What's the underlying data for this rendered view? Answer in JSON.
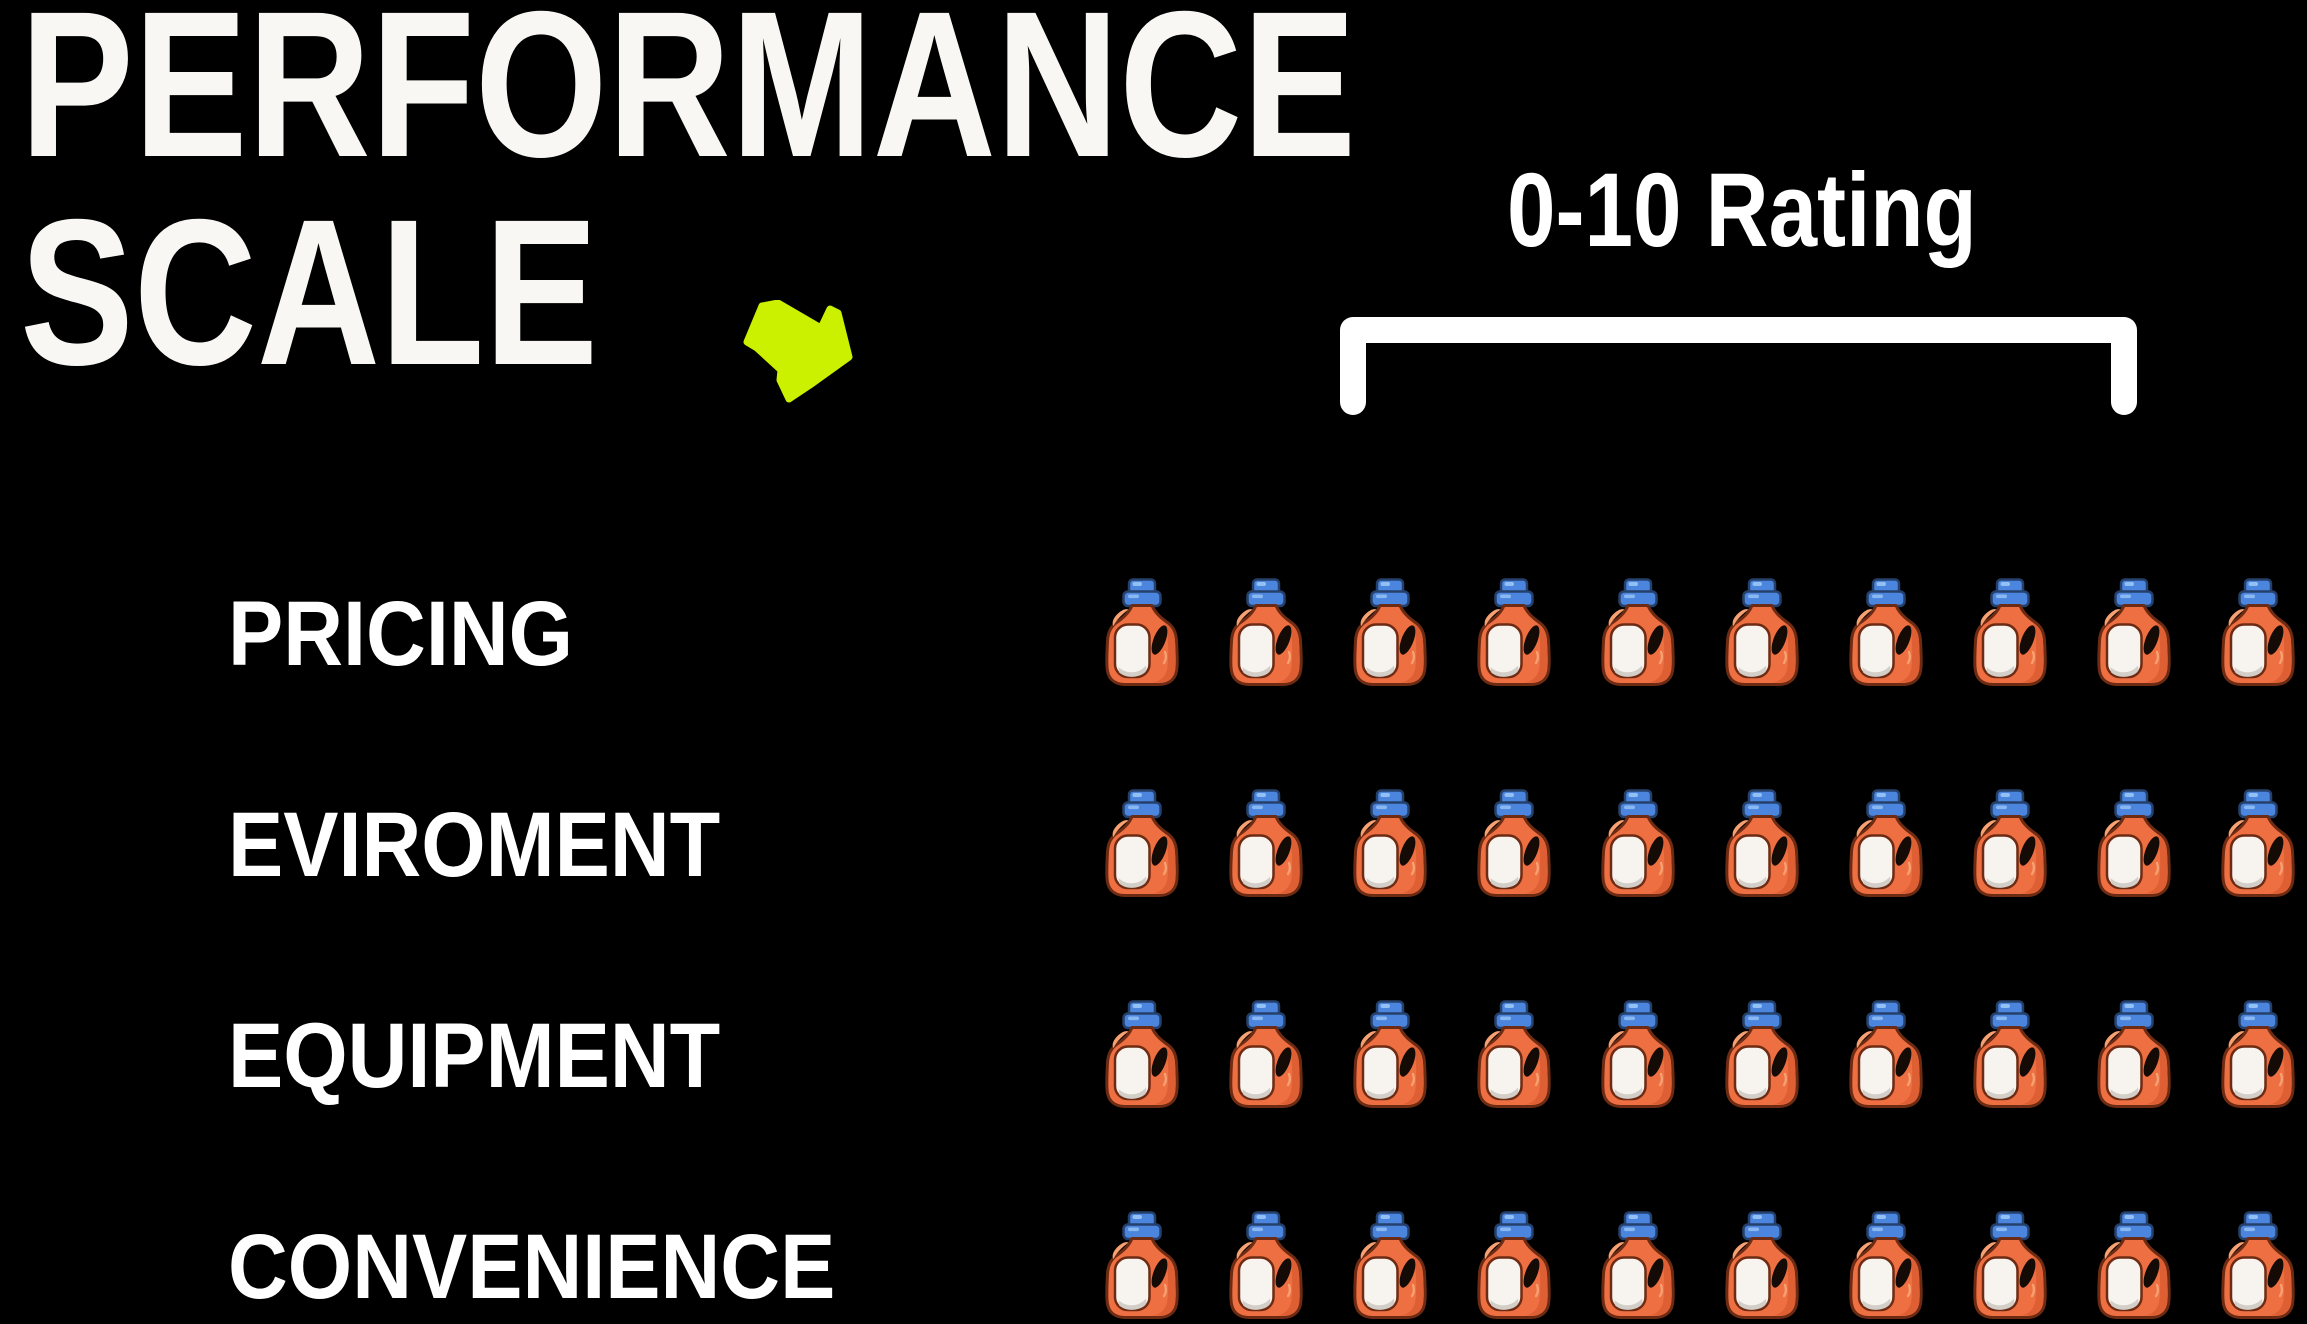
{
  "title": {
    "line1": "PERFORMANCE",
    "line2": "SCALE"
  },
  "rating": {
    "label": "0-10 Rating"
  },
  "chart_data": {
    "type": "bar",
    "subtype": "pictogram",
    "icon": "detergent-bottle",
    "title": "PERFORMANCE SCALE",
    "scale_label": "0-10 Rating",
    "categories": [
      "PRICING",
      "EVIROMENT",
      "EQUIPMENT",
      "CONVENIENCE"
    ],
    "values": [
      10,
      10,
      10,
      10
    ],
    "xlim": [
      0,
      10
    ],
    "grid": false,
    "legend": false,
    "layout": "horizontal rows of bottle icons, one icon per rating point"
  },
  "icons": {
    "arrow": "down-right-arrow",
    "bracket": "range-bracket",
    "row_icon": "detergent-bottle"
  },
  "colors": {
    "background": "#000000",
    "title_text": "#F8F7F3",
    "label_text": "#FFFFFF",
    "arrow": "#CBF000",
    "bracket": "#FFFFFF",
    "bottle_body": "#EE6F41",
    "bottle_body_shade": "#DD5F33",
    "bottle_body_highlight": "#F7A071",
    "bottle_outline": "#6E2B13",
    "bottle_cap": "#4B85DD",
    "bottle_cap_highlight": "#93C0F4",
    "bottle_cap_outline": "#25406B",
    "bottle_label": "#F7F4F0",
    "bottle_label_shade": "#D3CEC7",
    "handle_hole": "#150B06"
  }
}
